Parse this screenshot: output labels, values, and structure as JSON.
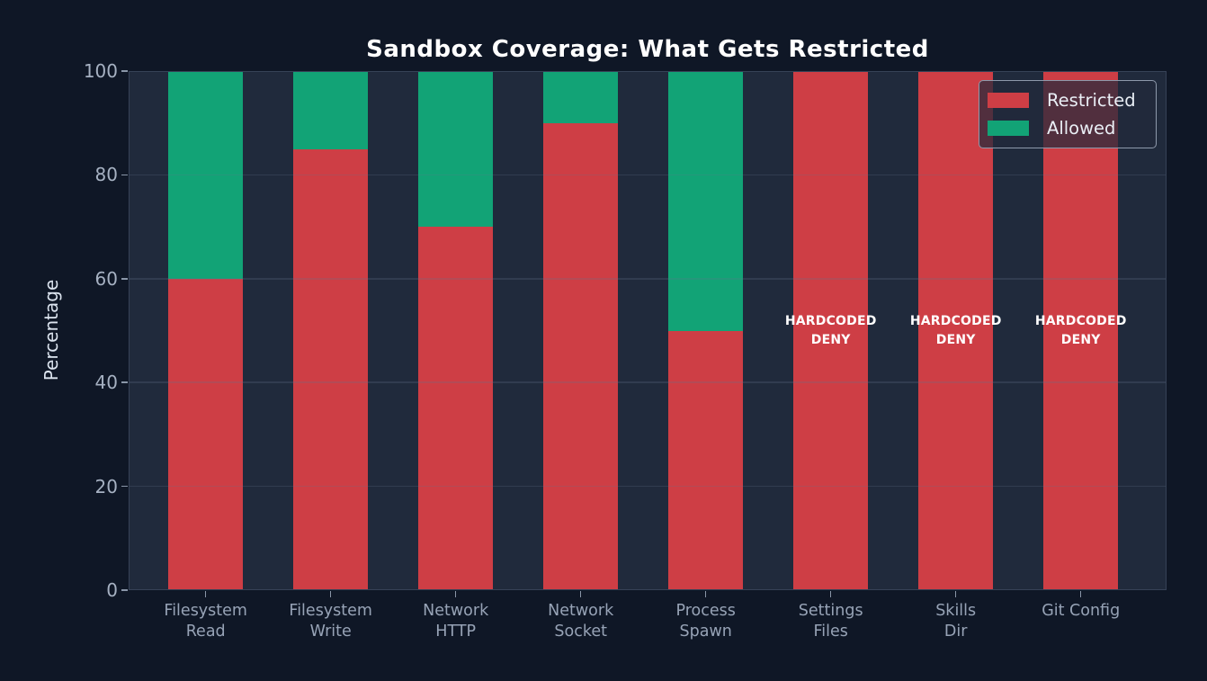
{
  "chart_data": {
    "type": "bar",
    "stacked": true,
    "title": "Sandbox Coverage: What Gets Restricted",
    "xlabel": "",
    "ylabel": "Percentage",
    "ylim": [
      0,
      100
    ],
    "yticks": [
      0,
      20,
      40,
      60,
      80,
      100
    ],
    "grid": true,
    "categories": [
      "Filesystem\nRead",
      "Filesystem\nWrite",
      "Network\nHTTP",
      "Network\nSocket",
      "Process\nSpawn",
      "Settings\nFiles",
      "Skills\nDir",
      "Git Config"
    ],
    "series": [
      {
        "name": "Restricted",
        "color": "#ce3e45",
        "values": [
          60,
          85,
          70,
          90,
          50,
          100,
          100,
          100
        ]
      },
      {
        "name": "Allowed",
        "color": "#12a376",
        "values": [
          40,
          15,
          30,
          10,
          50,
          0,
          0,
          0
        ]
      }
    ],
    "annotations": [
      {
        "category_index": 5,
        "y": 50,
        "text": "HARDCODED\nDENY"
      },
      {
        "category_index": 6,
        "y": 50,
        "text": "HARDCODED\nDENY"
      },
      {
        "category_index": 7,
        "y": 50,
        "text": "HARDCODED\nDENY"
      }
    ],
    "legend": {
      "position": "upper right",
      "entries": [
        {
          "label": "Restricted",
          "color": "#ce3e45"
        },
        {
          "label": "Allowed",
          "color": "#12a376"
        }
      ]
    }
  },
  "colors": {
    "figure_background": "#0f1726",
    "plot_background": "#202a3c",
    "restricted": "#ce3e45",
    "allowed": "#12a376",
    "title_text": "#ffffff",
    "tick_text": "#a6b1c2",
    "annotation_text": "#ffffff"
  }
}
